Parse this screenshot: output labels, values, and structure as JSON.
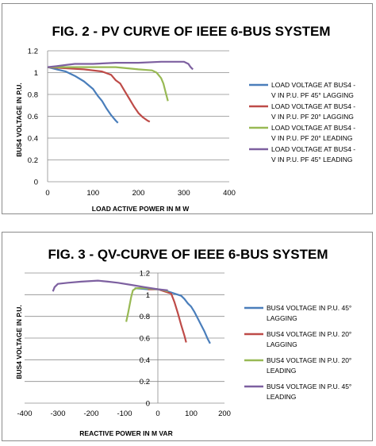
{
  "chart_data": [
    {
      "type": "line",
      "title": "FIG. 2 - PV CURVE OF IEEE 6-BUS SYSTEM",
      "xlabel": "LOAD ACTIVE POWER IN M W",
      "ylabel": "BUS4 VOLTAGE IN P.U.",
      "xlim": [
        0,
        400
      ],
      "ylim": [
        0,
        1.2
      ],
      "xticks": [
        "0",
        "100",
        "200",
        "300",
        "400"
      ],
      "yticks": [
        "0",
        "0.2",
        "0.4",
        "0.6",
        "0.8",
        "1",
        "1.2"
      ],
      "grid": "horizontal",
      "legend_position": "right",
      "series": [
        {
          "name": "LOAD VOLTAGE AT BUS4 - V IN P.U. PF 45° LAGGING",
          "color": "#4a7ebb",
          "legend_lines": [
            "LOAD VOLTAGE AT BUS4 -",
            "V IN P.U. PF 45° LAGGING"
          ],
          "x": [
            0,
            20,
            40,
            60,
            80,
            100,
            110,
            120,
            130,
            140,
            150,
            155
          ],
          "y": [
            1.05,
            1.03,
            1.01,
            0.97,
            0.92,
            0.85,
            0.79,
            0.74,
            0.67,
            0.61,
            0.56,
            0.54
          ]
        },
        {
          "name": "LOAD VOLTAGE AT BUS4 - V IN P.U. PF 20° LAGGING",
          "color": "#be4b48",
          "legend_lines": [
            "LOAD VOLTAGE AT BUS4 -",
            "V IN P.U. PF 20° LAGGING"
          ],
          "x": [
            0,
            40,
            80,
            120,
            140,
            150,
            160,
            170,
            180,
            190,
            200,
            210,
            220,
            225
          ],
          "y": [
            1.05,
            1.04,
            1.03,
            1.01,
            0.98,
            0.93,
            0.9,
            0.83,
            0.76,
            0.69,
            0.63,
            0.59,
            0.56,
            0.55
          ]
        },
        {
          "name": "LOAD VOLTAGE AT BUS4 - V IN P.U. PF 20° LEADING",
          "color": "#98b954",
          "legend_lines": [
            "LOAD VOLTAGE AT BUS4 -",
            "V IN P.U. PF 20° LEADING"
          ],
          "x": [
            0,
            50,
            100,
            150,
            200,
            230,
            240,
            250,
            255,
            260,
            265
          ],
          "y": [
            1.05,
            1.05,
            1.05,
            1.05,
            1.03,
            1.02,
            1.0,
            0.95,
            0.9,
            0.82,
            0.74
          ]
        },
        {
          "name": "LOAD VOLTAGE AT BUS4 - V IN P.U. PF 45° LEADING",
          "color": "#7d60a0",
          "legend_lines": [
            "LOAD VOLTAGE AT BUS4 -",
            "V IN P.U. PF 45° LEADING"
          ],
          "x": [
            0,
            20,
            40,
            60,
            100,
            150,
            200,
            250,
            280,
            300,
            310,
            315,
            320
          ],
          "y": [
            1.05,
            1.06,
            1.07,
            1.08,
            1.08,
            1.09,
            1.09,
            1.1,
            1.1,
            1.1,
            1.08,
            1.05,
            1.03
          ]
        }
      ]
    },
    {
      "type": "line",
      "title": "FIG. 3 - QV-CURVE OF IEEE 6-BUS SYSTEM",
      "xlabel": "REACTIVE POWER IN M VAR",
      "ylabel": "BUS4 VOLTAGE IN P.U.",
      "xlim": [
        -400,
        200
      ],
      "ylim": [
        0,
        1.2
      ],
      "xticks": [
        "-400",
        "-300",
        "-200",
        "-100",
        "0",
        "100",
        "200"
      ],
      "yticks": [
        "0",
        "0.2",
        "0.4",
        "0.6",
        "0.8",
        "1",
        "1.2"
      ],
      "grid": "horizontal",
      "legend_position": "right",
      "series": [
        {
          "name": "BUS4 VOLTAGE IN P.U. 45° LAGGING",
          "color": "#4a7ebb",
          "legend_lines": [
            "BUS4 VOLTAGE IN P.U. 45°",
            "LAGGING"
          ],
          "x": [
            -70,
            -30,
            0,
            30,
            60,
            70,
            80,
            90,
            100,
            110,
            120,
            130,
            140,
            150,
            157
          ],
          "y": [
            1.06,
            1.05,
            1.05,
            1.03,
            1.0,
            0.99,
            0.96,
            0.92,
            0.89,
            0.84,
            0.78,
            0.72,
            0.66,
            0.59,
            0.55
          ]
        },
        {
          "name": "BUS4 VOLTAGE IN P.U. 20° LAGGING",
          "color": "#be4b48",
          "legend_lines": [
            "BUS4 VOLTAGE IN P.U. 20°",
            "LAGGING"
          ],
          "x": [
            -30,
            0,
            20,
            40,
            50,
            60,
            70,
            80,
            85
          ],
          "y": [
            1.05,
            1.05,
            1.03,
            1.01,
            0.93,
            0.83,
            0.72,
            0.62,
            0.56
          ]
        },
        {
          "name": "BUS4 VOLTAGE IN P.U. 20° LEADING",
          "color": "#98b954",
          "legend_lines": [
            "BUS4 VOLTAGE IN P.U. 20°",
            "LEADING"
          ],
          "x": [
            -95,
            -90,
            -85,
            -80,
            -75,
            -65,
            -40,
            0,
            20,
            30
          ],
          "y": [
            0.75,
            0.82,
            0.9,
            0.98,
            1.04,
            1.06,
            1.06,
            1.05,
            1.04,
            1.03
          ]
        },
        {
          "name": "BUS4 VOLTAGE IN P.U. 45° LEADING",
          "color": "#7d60a0",
          "legend_lines": [
            "BUS4 VOLTAGE IN P.U. 45°",
            "LEADING"
          ],
          "x": [
            -315,
            -310,
            -300,
            -270,
            -230,
            -180,
            -150,
            -120,
            -80,
            -40,
            0,
            30
          ],
          "y": [
            1.03,
            1.07,
            1.1,
            1.11,
            1.12,
            1.13,
            1.12,
            1.11,
            1.09,
            1.07,
            1.05,
            1.04
          ]
        }
      ]
    }
  ]
}
